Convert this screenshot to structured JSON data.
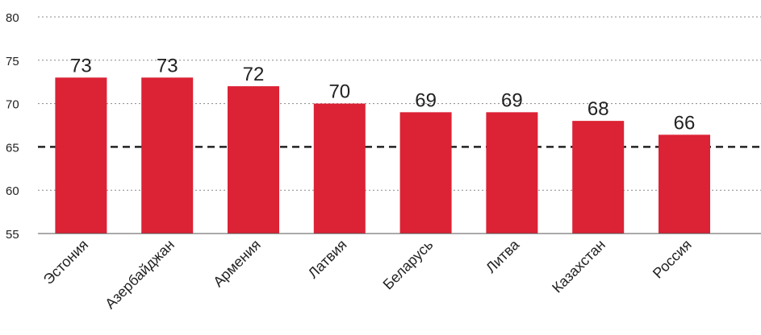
{
  "chart_data": {
    "type": "bar",
    "title": "",
    "xlabel": "",
    "ylabel": "",
    "categories": [
      "Эстония",
      "Азербайджан",
      "Армения",
      "Латвия",
      "Беларусь",
      "Литва",
      "Казахстан",
      "Россия"
    ],
    "values": [
      73,
      73,
      72,
      70,
      69,
      69,
      68,
      66.4
    ],
    "value_labels": [
      "73",
      "73",
      "72",
      "70",
      "69",
      "69",
      "68",
      "66"
    ],
    "ylim": [
      55,
      80
    ],
    "yticks": [
      55,
      60,
      65,
      70,
      75,
      80
    ],
    "ytick_labels": [
      "55",
      "60",
      "65",
      "70",
      "75",
      "80"
    ],
    "grid": "horizontal dotted",
    "reference_line": 65,
    "colors": {
      "bar": "#dc2235",
      "reference_line": "#222222",
      "grid": "#888888",
      "text": "#222222"
    }
  }
}
